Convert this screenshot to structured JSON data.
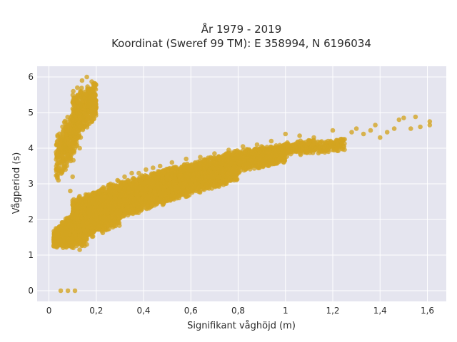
{
  "chart_data": {
    "type": "scatter",
    "title_line1": "År 1979 - 2019",
    "title_line2": "Koordinat (Sweref 99 TM): E 358994, N 6196034",
    "xlabel": "Signifikant våghöjd (m)",
    "ylabel": "Vågperiod (s)",
    "xlim": [
      -0.05,
      1.68
    ],
    "ylim": [
      -0.3,
      6.3
    ],
    "x_ticks": [
      0,
      0.2,
      0.4,
      0.6,
      0.8,
      1.0,
      1.2,
      1.4,
      1.6
    ],
    "x_tick_labels": [
      "0",
      "0,2",
      "0,4",
      "0,6",
      "0,8",
      "1",
      "1,2",
      "1,4",
      "1,6"
    ],
    "y_ticks": [
      0,
      1,
      2,
      3,
      4,
      5,
      6
    ],
    "y_tick_labels": [
      "0",
      "1",
      "2",
      "3",
      "4",
      "5",
      "6"
    ],
    "grid": true,
    "colors": {
      "marker": "#D4A420",
      "plot_bg": "#E5E5EF",
      "grid": "#ffffff",
      "page_bg": "#ffffff"
    },
    "points": [
      [
        0.05,
        0.0
      ],
      [
        0.08,
        0.0
      ],
      [
        0.11,
        0.0
      ],
      [
        0.02,
        1.25
      ],
      [
        0.03,
        1.5
      ],
      [
        0.05,
        1.4
      ],
      [
        0.06,
        1.7
      ],
      [
        0.08,
        1.45
      ],
      [
        0.09,
        1.85
      ],
      [
        0.1,
        1.3
      ],
      [
        0.11,
        1.6
      ],
      [
        0.12,
        2.0
      ],
      [
        0.13,
        1.15
      ],
      [
        0.14,
        2.2
      ],
      [
        0.15,
        1.5
      ],
      [
        0.16,
        1.9
      ],
      [
        0.17,
        2.4
      ],
      [
        0.18,
        1.6
      ],
      [
        0.19,
        2.1
      ],
      [
        0.2,
        2.6
      ],
      [
        0.21,
        1.8
      ],
      [
        0.22,
        2.3
      ],
      [
        0.23,
        2.9
      ],
      [
        0.24,
        2.0
      ],
      [
        0.25,
        2.5
      ],
      [
        0.26,
        3.0
      ],
      [
        0.27,
        2.1
      ],
      [
        0.28,
        2.6
      ],
      [
        0.29,
        3.1
      ],
      [
        0.3,
        2.2
      ],
      [
        0.31,
        2.7
      ],
      [
        0.32,
        3.2
      ],
      [
        0.33,
        2.3
      ],
      [
        0.34,
        2.8
      ],
      [
        0.35,
        3.3
      ],
      [
        0.36,
        2.4
      ],
      [
        0.37,
        2.9
      ],
      [
        0.38,
        3.3
      ],
      [
        0.39,
        2.5
      ],
      [
        0.4,
        3.0
      ],
      [
        0.41,
        3.4
      ],
      [
        0.42,
        2.6
      ],
      [
        0.43,
        3.1
      ],
      [
        0.44,
        3.45
      ],
      [
        0.45,
        2.7
      ],
      [
        0.46,
        3.15
      ],
      [
        0.47,
        3.5
      ],
      [
        0.48,
        2.75
      ],
      [
        0.5,
        3.2
      ],
      [
        0.52,
        3.6
      ],
      [
        0.54,
        2.9
      ],
      [
        0.56,
        3.35
      ],
      [
        0.58,
        3.7
      ],
      [
        0.6,
        3.0
      ],
      [
        0.62,
        3.45
      ],
      [
        0.64,
        3.75
      ],
      [
        0.66,
        3.1
      ],
      [
        0.68,
        3.55
      ],
      [
        0.7,
        3.85
      ],
      [
        0.72,
        3.2
      ],
      [
        0.74,
        3.65
      ],
      [
        0.76,
        3.95
      ],
      [
        0.78,
        3.35
      ],
      [
        0.8,
        3.75
      ],
      [
        0.82,
        4.05
      ],
      [
        0.84,
        3.5
      ],
      [
        0.86,
        3.85
      ],
      [
        0.88,
        4.1
      ],
      [
        0.9,
        3.65
      ],
      [
        0.92,
        3.9
      ],
      [
        0.94,
        4.2
      ],
      [
        0.96,
        3.8
      ],
      [
        0.98,
        4.0
      ],
      [
        1.0,
        4.4
      ],
      [
        1.02,
        3.9
      ],
      [
        1.04,
        4.1
      ],
      [
        1.06,
        4.35
      ],
      [
        1.08,
        4.0
      ],
      [
        1.1,
        4.15
      ],
      [
        1.12,
        4.3
      ],
      [
        1.15,
        4.05
      ],
      [
        1.18,
        4.2
      ],
      [
        1.2,
        4.5
      ],
      [
        1.22,
        4.1
      ],
      [
        1.25,
        4.25
      ],
      [
        1.28,
        4.45
      ],
      [
        1.3,
        4.55
      ],
      [
        1.33,
        4.4
      ],
      [
        1.36,
        4.5
      ],
      [
        1.38,
        4.65
      ],
      [
        1.4,
        4.3
      ],
      [
        1.43,
        4.45
      ],
      [
        1.46,
        4.55
      ],
      [
        1.48,
        4.8
      ],
      [
        1.5,
        4.85
      ],
      [
        1.53,
        4.55
      ],
      [
        1.57,
        4.6
      ],
      [
        1.61,
        4.75
      ],
      [
        1.61,
        4.65
      ],
      [
        1.55,
        4.88
      ],
      [
        0.04,
        3.1
      ],
      [
        0.05,
        3.6
      ],
      [
        0.06,
        4.0
      ],
      [
        0.07,
        3.4
      ],
      [
        0.08,
        4.4
      ],
      [
        0.09,
        3.9
      ],
      [
        0.1,
        4.8
      ],
      [
        0.11,
        4.2
      ],
      [
        0.12,
        5.0
      ],
      [
        0.13,
        4.6
      ],
      [
        0.14,
        5.3
      ],
      [
        0.15,
        4.9
      ],
      [
        0.16,
        5.5
      ],
      [
        0.17,
        5.2
      ],
      [
        0.18,
        5.6
      ],
      [
        0.1,
        3.2
      ],
      [
        0.09,
        2.8
      ],
      [
        0.14,
        5.9
      ],
      [
        0.16,
        6.0
      ],
      [
        0.12,
        5.7
      ],
      [
        0.13,
        4.0
      ],
      [
        0.07,
        4.6
      ],
      [
        0.11,
        5.4
      ]
    ],
    "bands": [
      {
        "x_range": [
          0.02,
          0.16
        ],
        "y_at_start": [
          1.2,
          1.7
        ],
        "y_at_end": [
          1.2,
          2.6
        ],
        "count": 1400
      },
      {
        "x_range": [
          0.1,
          0.3
        ],
        "y_at_start": [
          1.3,
          2.6
        ],
        "y_at_end": [
          1.8,
          3.1
        ],
        "count": 2600
      },
      {
        "x_range": [
          0.3,
          0.55
        ],
        "y_at_start": [
          2.0,
          3.1
        ],
        "y_at_end": [
          2.55,
          3.55
        ],
        "count": 2600
      },
      {
        "x_range": [
          0.55,
          0.8
        ],
        "y_at_start": [
          2.55,
          3.55
        ],
        "y_at_end": [
          3.1,
          3.95
        ],
        "count": 2000
      },
      {
        "x_range": [
          0.8,
          1.0
        ],
        "y_at_start": [
          3.3,
          3.95
        ],
        "y_at_end": [
          3.6,
          4.15
        ],
        "count": 1000
      },
      {
        "x_range": [
          1.0,
          1.25
        ],
        "y_at_start": [
          3.75,
          4.2
        ],
        "y_at_end": [
          3.9,
          4.3
        ],
        "count": 300
      },
      {
        "x_range": [
          0.03,
          0.12
        ],
        "y_at_start": [
          2.9,
          4.5
        ],
        "y_at_end": [
          3.8,
          5.4
        ],
        "count": 350
      },
      {
        "x_range": [
          0.1,
          0.2
        ],
        "y_at_start": [
          4.0,
          5.6
        ],
        "y_at_end": [
          4.8,
          6.0
        ],
        "count": 450
      }
    ]
  }
}
